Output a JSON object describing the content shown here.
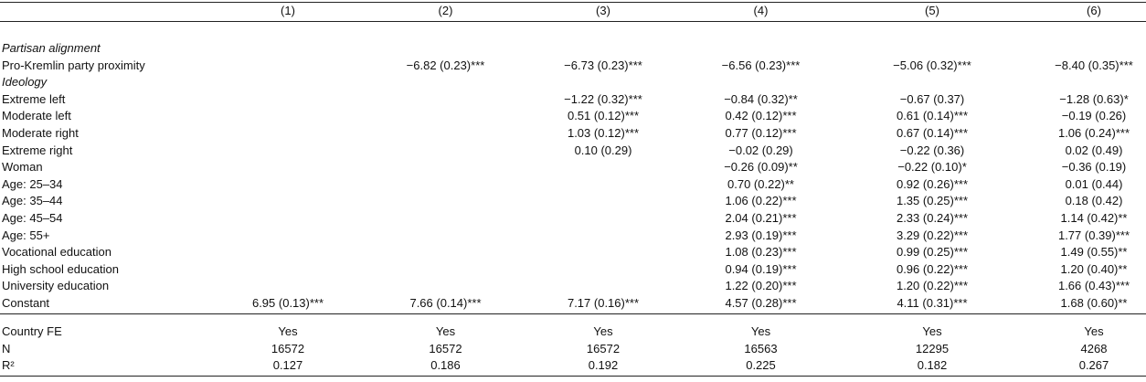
{
  "table": {
    "header": [
      "(1)",
      "(2)",
      "(3)",
      "(4)",
      "(5)",
      "(6)"
    ],
    "rows": [
      {
        "section": "Partisan alignment"
      },
      {
        "label": "Pro-Kremlin party proximity",
        "cells": [
          null,
          "−6.82 (0.23)***",
          "−6.73 (0.23)***",
          "−6.56 (0.23)***",
          "−5.06 (0.32)***",
          "−8.40 (0.35)***"
        ]
      },
      {
        "section": "Ideology"
      },
      {
        "label": "Extreme left",
        "cells": [
          null,
          null,
          "−1.22 (0.32)***",
          "−0.84 (0.32)**",
          "−0.67 (0.37)",
          "−1.28 (0.63)*"
        ]
      },
      {
        "label": "Moderate left",
        "cells": [
          null,
          null,
          "0.51 (0.12)***",
          "0.42 (0.12)***",
          "0.61 (0.14)***",
          "−0.19 (0.26)"
        ]
      },
      {
        "label": "Moderate right",
        "cells": [
          null,
          null,
          "1.03 (0.12)***",
          "0.77 (0.12)***",
          "0.67 (0.14)***",
          "1.06 (0.24)***"
        ]
      },
      {
        "label": "Extreme right",
        "cells": [
          null,
          null,
          "0.10 (0.29)",
          "−0.02 (0.29)",
          "−0.22 (0.36)",
          "0.02 (0.49)"
        ]
      },
      {
        "label": "Woman",
        "cells": [
          null,
          null,
          null,
          "−0.26 (0.09)**",
          "−0.22 (0.10)*",
          "−0.36 (0.19)"
        ]
      },
      {
        "label": "Age: 25–34",
        "cells": [
          null,
          null,
          null,
          "0.70 (0.22)**",
          "0.92 (0.26)***",
          "0.01 (0.44)"
        ]
      },
      {
        "label": "Age: 35–44",
        "cells": [
          null,
          null,
          null,
          "1.06 (0.22)***",
          "1.35 (0.25)***",
          "0.18 (0.42)"
        ]
      },
      {
        "label": "Age: 45–54",
        "cells": [
          null,
          null,
          null,
          "2.04 (0.21)***",
          "2.33 (0.24)***",
          "1.14 (0.42)**"
        ]
      },
      {
        "label": "Age: 55+",
        "cells": [
          null,
          null,
          null,
          "2.93 (0.19)***",
          "3.29 (0.22)***",
          "1.77 (0.39)***"
        ]
      },
      {
        "label": "Vocational education",
        "cells": [
          null,
          null,
          null,
          "1.08 (0.23)***",
          "0.99 (0.25)***",
          "1.49 (0.55)**"
        ]
      },
      {
        "label": "High school education",
        "cells": [
          null,
          null,
          null,
          "0.94 (0.19)***",
          "0.96 (0.22)***",
          "1.20 (0.40)**"
        ]
      },
      {
        "label": "University education",
        "cells": [
          null,
          null,
          null,
          "1.22 (0.20)***",
          "1.20 (0.22)***",
          "1.66 (0.43)***"
        ]
      },
      {
        "label": "Constant",
        "cells": [
          "6.95 (0.13)***",
          "7.66 (0.14)***",
          "7.17 (0.16)***",
          "4.57 (0.28)***",
          "4.11 (0.31)***",
          "1.68 (0.60)**"
        ]
      }
    ],
    "footer": [
      {
        "label": "Country FE",
        "cells": [
          "Yes",
          "Yes",
          "Yes",
          "Yes",
          "Yes",
          "Yes"
        ]
      },
      {
        "label": "N",
        "cells": [
          "16572",
          "16572",
          "16572",
          "16563",
          "12295",
          "4268"
        ]
      },
      {
        "label": "R²",
        "cells": [
          "0.127",
          "0.186",
          "0.192",
          "0.225",
          "0.182",
          "0.267"
        ]
      }
    ]
  }
}
